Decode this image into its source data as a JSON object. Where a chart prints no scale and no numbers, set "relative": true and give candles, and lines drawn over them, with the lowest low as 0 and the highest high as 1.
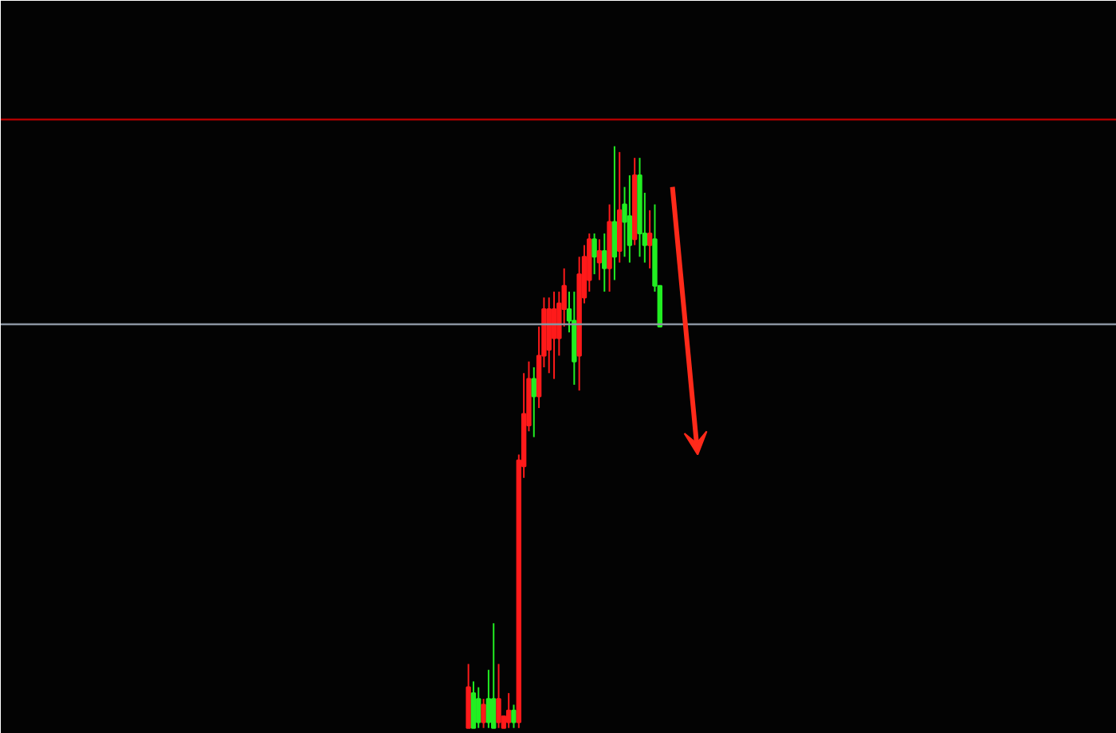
{
  "chart_data": {
    "type": "candlestick",
    "relative": true,
    "grid": false,
    "categories": [
      null,
      null,
      null,
      null,
      null,
      null,
      null,
      null,
      null,
      null,
      null,
      null,
      null,
      null,
      null,
      null,
      null,
      null,
      null,
      null,
      null,
      null,
      null,
      null,
      null,
      null,
      null,
      null,
      null,
      null,
      null,
      null,
      null,
      null,
      null,
      null,
      null,
      null,
      null
    ],
    "ohlc": [
      [
        0.0,
        0.11,
        0.0,
        0.07
      ],
      [
        0.06,
        0.08,
        0.0,
        0.0
      ],
      [
        0.05,
        0.07,
        0.0,
        0.01
      ],
      [
        0.01,
        0.05,
        0.0,
        0.04
      ],
      [
        0.05,
        0.1,
        0.0,
        0.01
      ],
      [
        0.05,
        0.18,
        0.0,
        0.0
      ],
      [
        0.01,
        0.11,
        0.0,
        0.05
      ],
      [
        0.0,
        0.02,
        0.0,
        0.02
      ],
      [
        0.01,
        0.06,
        0.0,
        0.03
      ],
      [
        0.03,
        0.04,
        0.0,
        0.01
      ],
      [
        0.01,
        0.47,
        0.0,
        0.46
      ],
      [
        0.45,
        0.61,
        0.43,
        0.54
      ],
      [
        0.52,
        0.63,
        0.51,
        0.6
      ],
      [
        0.6,
        0.62,
        0.5,
        0.57
      ],
      [
        0.57,
        0.69,
        0.55,
        0.64
      ],
      [
        0.64,
        0.74,
        0.62,
        0.72
      ],
      [
        0.65,
        0.74,
        0.61,
        0.72
      ],
      [
        0.67,
        0.75,
        0.6,
        0.72
      ],
      [
        0.67,
        0.75,
        0.64,
        0.73
      ],
      [
        0.72,
        0.79,
        0.69,
        0.76
      ],
      [
        0.72,
        0.75,
        0.68,
        0.7
      ],
      [
        0.7,
        0.75,
        0.59,
        0.63
      ],
      [
        0.64,
        0.81,
        0.58,
        0.78
      ],
      [
        0.74,
        0.83,
        0.73,
        0.81
      ],
      [
        0.77,
        0.85,
        0.75,
        0.84
      ],
      [
        0.84,
        0.85,
        0.78,
        0.81
      ],
      [
        0.8,
        0.84,
        0.77,
        0.82
      ],
      [
        0.82,
        0.85,
        0.75,
        0.79
      ],
      [
        0.79,
        0.9,
        0.75,
        0.87
      ],
      [
        0.87,
        1.0,
        0.77,
        0.81
      ],
      [
        0.82,
        0.99,
        0.8,
        0.89
      ],
      [
        0.9,
        0.93,
        0.81,
        0.87
      ],
      [
        0.88,
        0.95,
        0.8,
        0.83
      ],
      [
        0.84,
        0.98,
        0.83,
        0.95
      ],
      [
        0.95,
        0.98,
        0.81,
        0.85
      ],
      [
        0.85,
        0.92,
        0.8,
        0.83
      ],
      [
        0.83,
        0.89,
        0.79,
        0.85
      ],
      [
        0.84,
        0.9,
        0.75,
        0.76
      ],
      [
        0.76,
        0.76,
        0.69,
        0.69
      ]
    ],
    "colors": [
      "#ff1a1a",
      "#22ee22",
      "#22ee22",
      "#ff1a1a",
      "#22ee22",
      "#22ee22",
      "#ff1a1a",
      "#ff1a1a",
      "#ff1a1a",
      "#22ee22",
      "#ff1a1a",
      "#ff1a1a",
      "#ff1a1a",
      "#22ee22",
      "#ff1a1a",
      "#ff1a1a",
      "#ff1a1a",
      "#ff1a1a",
      "#ff1a1a",
      "#ff1a1a",
      "#22ee22",
      "#22ee22",
      "#ff1a1a",
      "#ff1a1a",
      "#ff1a1a",
      "#22ee22",
      "#ff1a1a",
      "#22ee22",
      "#ff1a1a",
      "#22ee22",
      "#ff1a1a",
      "#22ee22",
      "#22ee22",
      "#ff1a1a",
      "#22ee22",
      "#22ee22",
      "#ff1a1a",
      "#22ee22",
      "#22ee22"
    ],
    "ref_lines": [
      {
        "axis": "y",
        "value": 1.046,
        "color": "#b00000"
      },
      {
        "axis": "y",
        "value": 0.694,
        "color": "#8a94a0"
      }
    ]
  }
}
